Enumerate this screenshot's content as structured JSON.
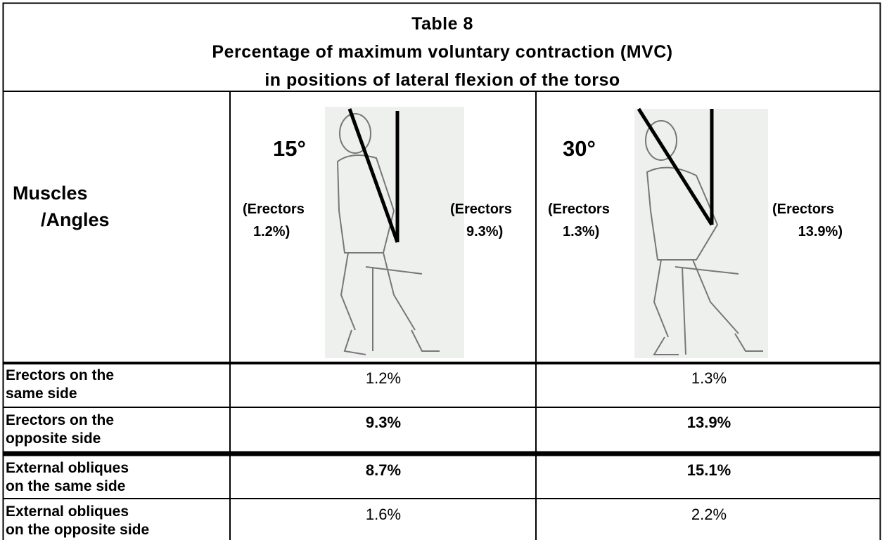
{
  "table": {
    "title": [
      "Table 8",
      "Percentage of maximum voluntary contraction (MVC)",
      "in positions of lateral flexion of the torso"
    ],
    "corner": [
      "Muscles",
      "/Angles"
    ],
    "columns": [
      {
        "angle": "15°",
        "left_note": [
          "(Erectors",
          "1.2%)"
        ],
        "right_note": [
          "(Erectors",
          "9.3%)"
        ]
      },
      {
        "angle": "30°",
        "left_note": [
          "(Erectors",
          "1.3%)"
        ],
        "right_note": [
          "(Erectors",
          "13.9%)"
        ]
      }
    ],
    "rows": [
      {
        "label": [
          "Erectors on the",
          "same side"
        ],
        "values": [
          "1.2%",
          "1.3%"
        ]
      },
      {
        "label": [
          "Erectors on the",
          "opposite side"
        ],
        "values": [
          "9.3%",
          "13.9%"
        ]
      },
      {
        "label": [
          "External obliques",
          "on the same side"
        ],
        "values": [
          "8.7%",
          "15.1%"
        ]
      },
      {
        "label": [
          "External obliques",
          "on the opposite side"
        ],
        "values": [
          "1.6%",
          "2.2%"
        ]
      }
    ]
  }
}
